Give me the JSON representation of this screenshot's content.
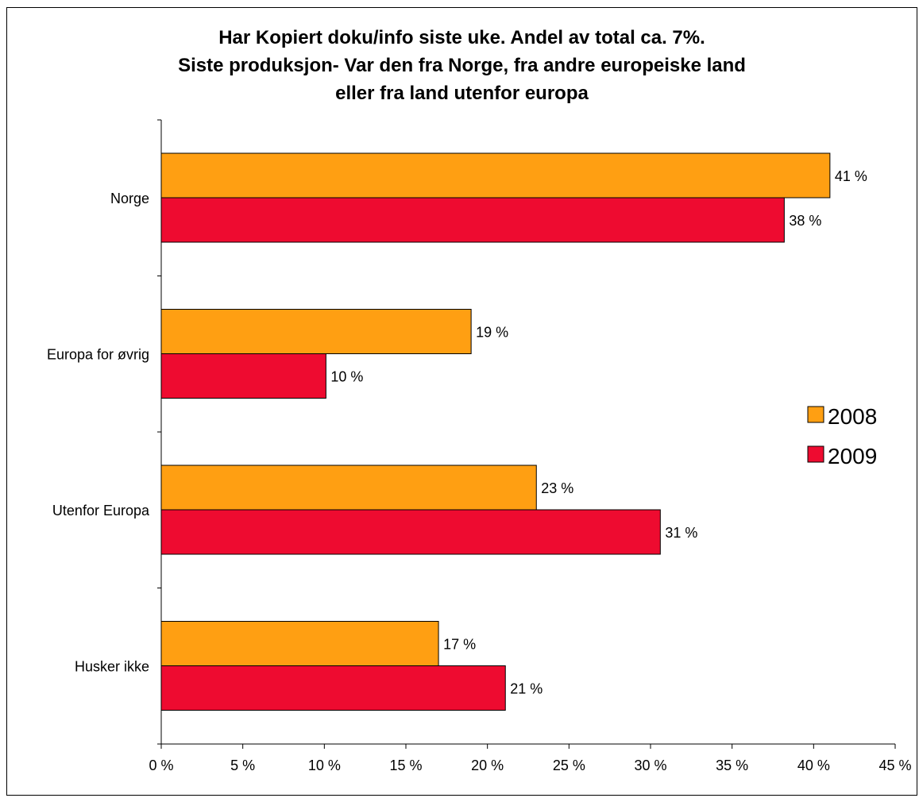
{
  "colors": {
    "s2008": "#FF9F12",
    "s2009": "#EE0B30",
    "axis": "#000000"
  },
  "chart_data": {
    "type": "bar",
    "orientation": "horizontal",
    "title_lines": [
      "Har Kopiert doku/info siste uke. Andel av total ca. 7%.",
      "Siste produksjon- Var den fra Norge, fra andre europeiske land",
      "eller fra land utenfor europa"
    ],
    "categories": [
      "Norge",
      "Europa for øvrig",
      "Utenfor Europa",
      "Husker ikke"
    ],
    "series": [
      {
        "name": "2008",
        "values": [
          41,
          19,
          23,
          17
        ],
        "labels": [
          "41 %",
          "19 %",
          "23 %",
          "17 %"
        ]
      },
      {
        "name": "2009",
        "values": [
          38.2,
          10.1,
          30.6,
          21.1
        ],
        "labels": [
          "38 %",
          "10 %",
          "31 %",
          "21 %"
        ]
      }
    ],
    "xlim": [
      0,
      45
    ],
    "xticks": [
      0,
      5,
      10,
      15,
      20,
      25,
      30,
      35,
      40,
      45
    ],
    "xtick_labels": [
      "0 %",
      "5 %",
      "10 %",
      "15 %",
      "20 %",
      "25 %",
      "30 %",
      "35 %",
      "40 %",
      "45 %"
    ],
    "grid": false,
    "legend_position": "right"
  }
}
